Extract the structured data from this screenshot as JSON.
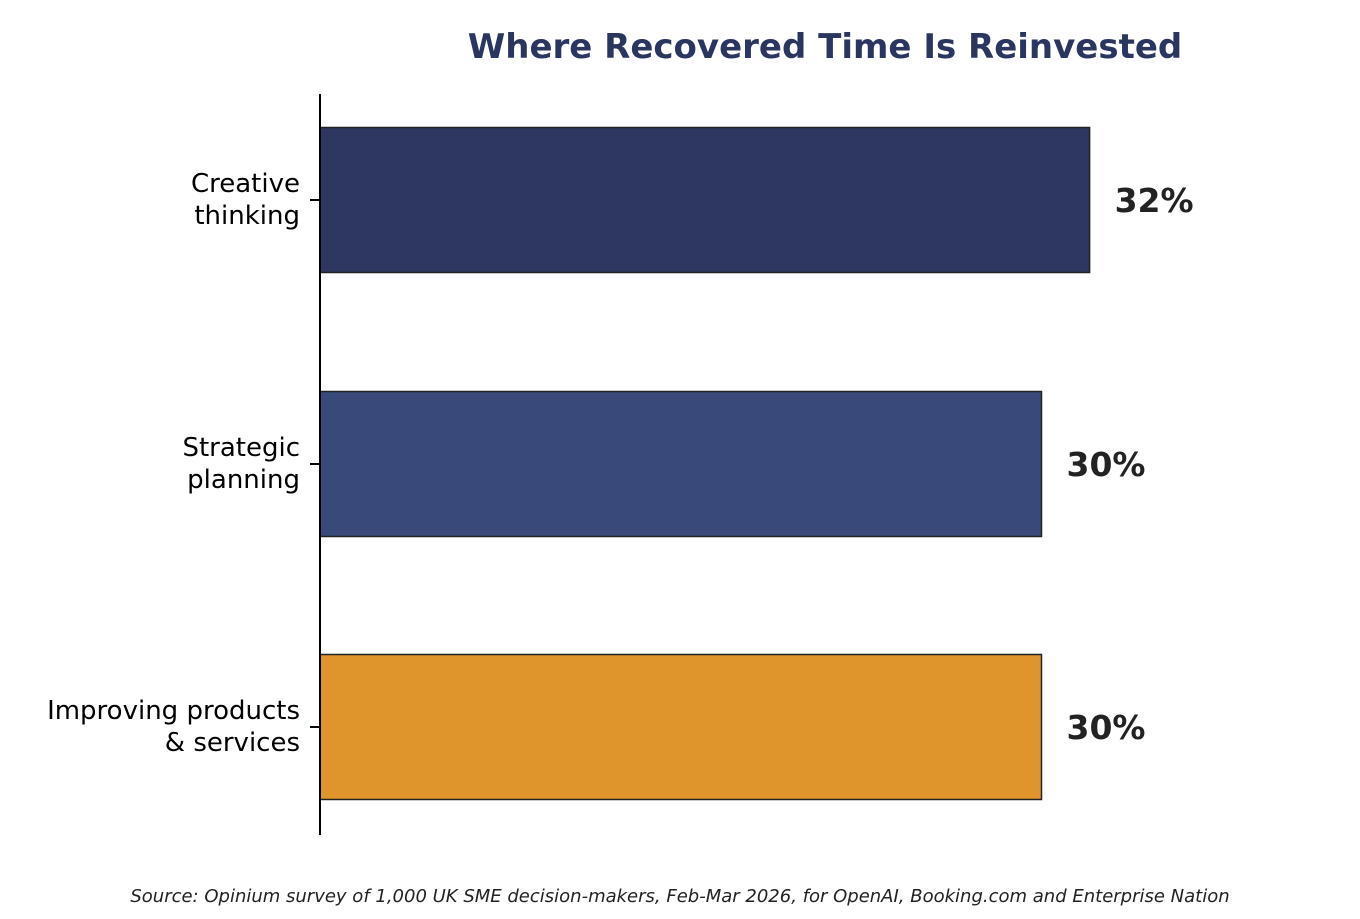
{
  "chart_data": {
    "type": "bar",
    "orientation": "horizontal",
    "title": "Where Recovered Time Is Reinvested",
    "categories": [
      [
        "Creative",
        "thinking"
      ],
      [
        "Strategic",
        "planning"
      ],
      [
        "Improving products",
        "& services"
      ]
    ],
    "values": [
      32,
      30,
      30
    ],
    "value_labels": [
      "32%",
      "30%",
      "30%"
    ],
    "bar_colors": [
      "#2d3760",
      "#39497a",
      "#df952b"
    ],
    "xlim": [
      0,
      36
    ],
    "grid": false,
    "xlabel": "",
    "ylabel": ""
  },
  "colors": {
    "title": "#2b3660",
    "bar_edge": "#222222",
    "axis": "#000000"
  },
  "source": "Source: Opinium survey of 1,000 UK SME decision-makers, Feb-Mar 2026, for OpenAI, Booking.com and Enterprise Nation"
}
